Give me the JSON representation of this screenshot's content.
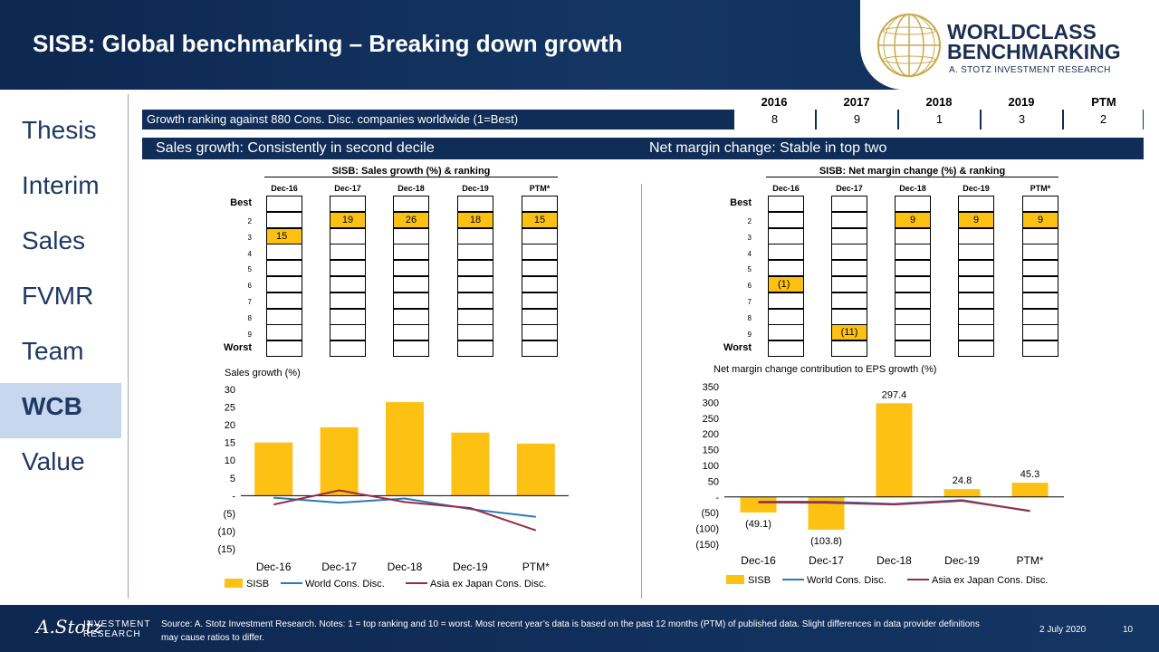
{
  "header": {
    "title": "SISB: Global benchmarking – Breaking down growth",
    "logo_line1": "WORLDCLASS",
    "logo_line2": "BENCHMARKING",
    "logo_line3": "A. STOTZ INVESTMENT RESEARCH"
  },
  "nav": [
    "Thesis",
    "Interim",
    "Sales",
    "FVMR",
    "Team",
    "WCB",
    "Value"
  ],
  "active_nav": "WCB",
  "ranking": {
    "years": [
      "2016",
      "2017",
      "2018",
      "2019",
      "PTM"
    ],
    "label": "Growth ranking against 880 Cons. Disc. companies worldwide (1=Best)",
    "values": [
      "8",
      "9",
      "1",
      "3",
      "2"
    ]
  },
  "sections": {
    "left": "Sales growth: Consistently in second decile",
    "right": "Net margin change: Stable in top two"
  },
  "rank_grid_left": {
    "title": "SISB: Sales growth (%) & ranking",
    "columns": [
      "Dec-16",
      "Dec-17",
      "Dec-18",
      "Dec-19",
      "PTM*"
    ],
    "best": "Best",
    "worst": "Worst",
    "row_labels": [
      "2",
      "3",
      "4",
      "5",
      "6",
      "7",
      "8",
      "9"
    ],
    "highlights": [
      {
        "col": 0,
        "row": 2,
        "label": "15"
      },
      {
        "col": 1,
        "row": 1,
        "label": "19"
      },
      {
        "col": 2,
        "row": 1,
        "label": "26"
      },
      {
        "col": 3,
        "row": 1,
        "label": "18"
      },
      {
        "col": 4,
        "row": 1,
        "label": "15"
      }
    ]
  },
  "rank_grid_right": {
    "title": "SISB: Net margin change (%) & ranking",
    "columns": [
      "Dec-16",
      "Dec-17",
      "Dec-18",
      "Dec-19",
      "PTM*"
    ],
    "best": "Best",
    "worst": "Worst",
    "row_labels": [
      "2",
      "3",
      "4",
      "5",
      "6",
      "7",
      "8",
      "9"
    ],
    "highlights": [
      {
        "col": 0,
        "row": 5,
        "label": "(1)"
      },
      {
        "col": 1,
        "row": 8,
        "label": "(11)"
      },
      {
        "col": 2,
        "row": 1,
        "label": "9"
      },
      {
        "col": 3,
        "row": 1,
        "label": "9"
      },
      {
        "col": 4,
        "row": 1,
        "label": "9"
      }
    ]
  },
  "chart_data": [
    {
      "type": "bar",
      "title": "Sales growth (%)",
      "categories": [
        "Dec-16",
        "Dec-17",
        "Dec-18",
        "Dec-19",
        "PTM*"
      ],
      "series": [
        {
          "name": "SISB",
          "type": "bar",
          "values": [
            15,
            19.3,
            26.4,
            17.8,
            14.7
          ]
        },
        {
          "name": "World Cons. Disc.",
          "type": "line",
          "values": [
            -0.6,
            -2,
            -0.8,
            -3.8,
            -6
          ]
        },
        {
          "name": "Asia ex Japan Cons. Disc.",
          "type": "line",
          "values": [
            -2.5,
            1.5,
            -1.8,
            -3.5,
            -9.8
          ]
        }
      ],
      "ylim": [
        -15,
        30
      ],
      "yticks": [
        30,
        25,
        20,
        15,
        10,
        5,
        0,
        -5,
        -10,
        -15
      ],
      "ytick_labels": [
        "30",
        "25",
        "20",
        "15",
        "10",
        "5",
        "-",
        "(5)",
        "(10)",
        "(15)"
      ],
      "data_labels": []
    },
    {
      "type": "bar",
      "title": "Net margin change contribution to EPS growth (%)",
      "categories": [
        "Dec-16",
        "Dec-17",
        "Dec-18",
        "Dec-19",
        "PTM*"
      ],
      "series": [
        {
          "name": "SISB",
          "type": "bar",
          "values": [
            -49.1,
            -103.8,
            297.4,
            24.8,
            45.3
          ]
        },
        {
          "name": "World Cons. Disc.",
          "type": "line",
          "values": [
            -15,
            -15,
            -22,
            -10,
            -45
          ]
        },
        {
          "name": "Asia ex Japan Cons. Disc.",
          "type": "line",
          "values": [
            -17,
            -18,
            -24,
            -12,
            -44
          ]
        }
      ],
      "ylim": [
        -150,
        350
      ],
      "yticks": [
        350,
        300,
        250,
        200,
        150,
        100,
        50,
        0,
        -50,
        -100,
        -150
      ],
      "ytick_labels": [
        "350",
        "300",
        "250",
        "200",
        "150",
        "100",
        "50",
        "-",
        "(50)",
        "(100)",
        "(150)"
      ],
      "data_labels": [
        "(49.1)",
        "(103.8)",
        "297.4",
        "24.8",
        "45.3"
      ]
    }
  ],
  "colors": {
    "bar": "#fdc114",
    "world": "#2a7ab5",
    "asia": "#9b2a45",
    "navy": "#0f2d57"
  },
  "footer": {
    "source": "Source: A. Stotz Investment Research. Notes: 1 = top ranking and 10 = worst. Most recent year’s data is based on the past 12 months (PTM) of published data. Slight differences in data provider definitions may cause ratios to differ.",
    "date": "2 July 2020",
    "page": "10",
    "brand_line1": "INVESTMENT",
    "brand_line2": "RESEARCH",
    "signature": "A.Stotz"
  }
}
